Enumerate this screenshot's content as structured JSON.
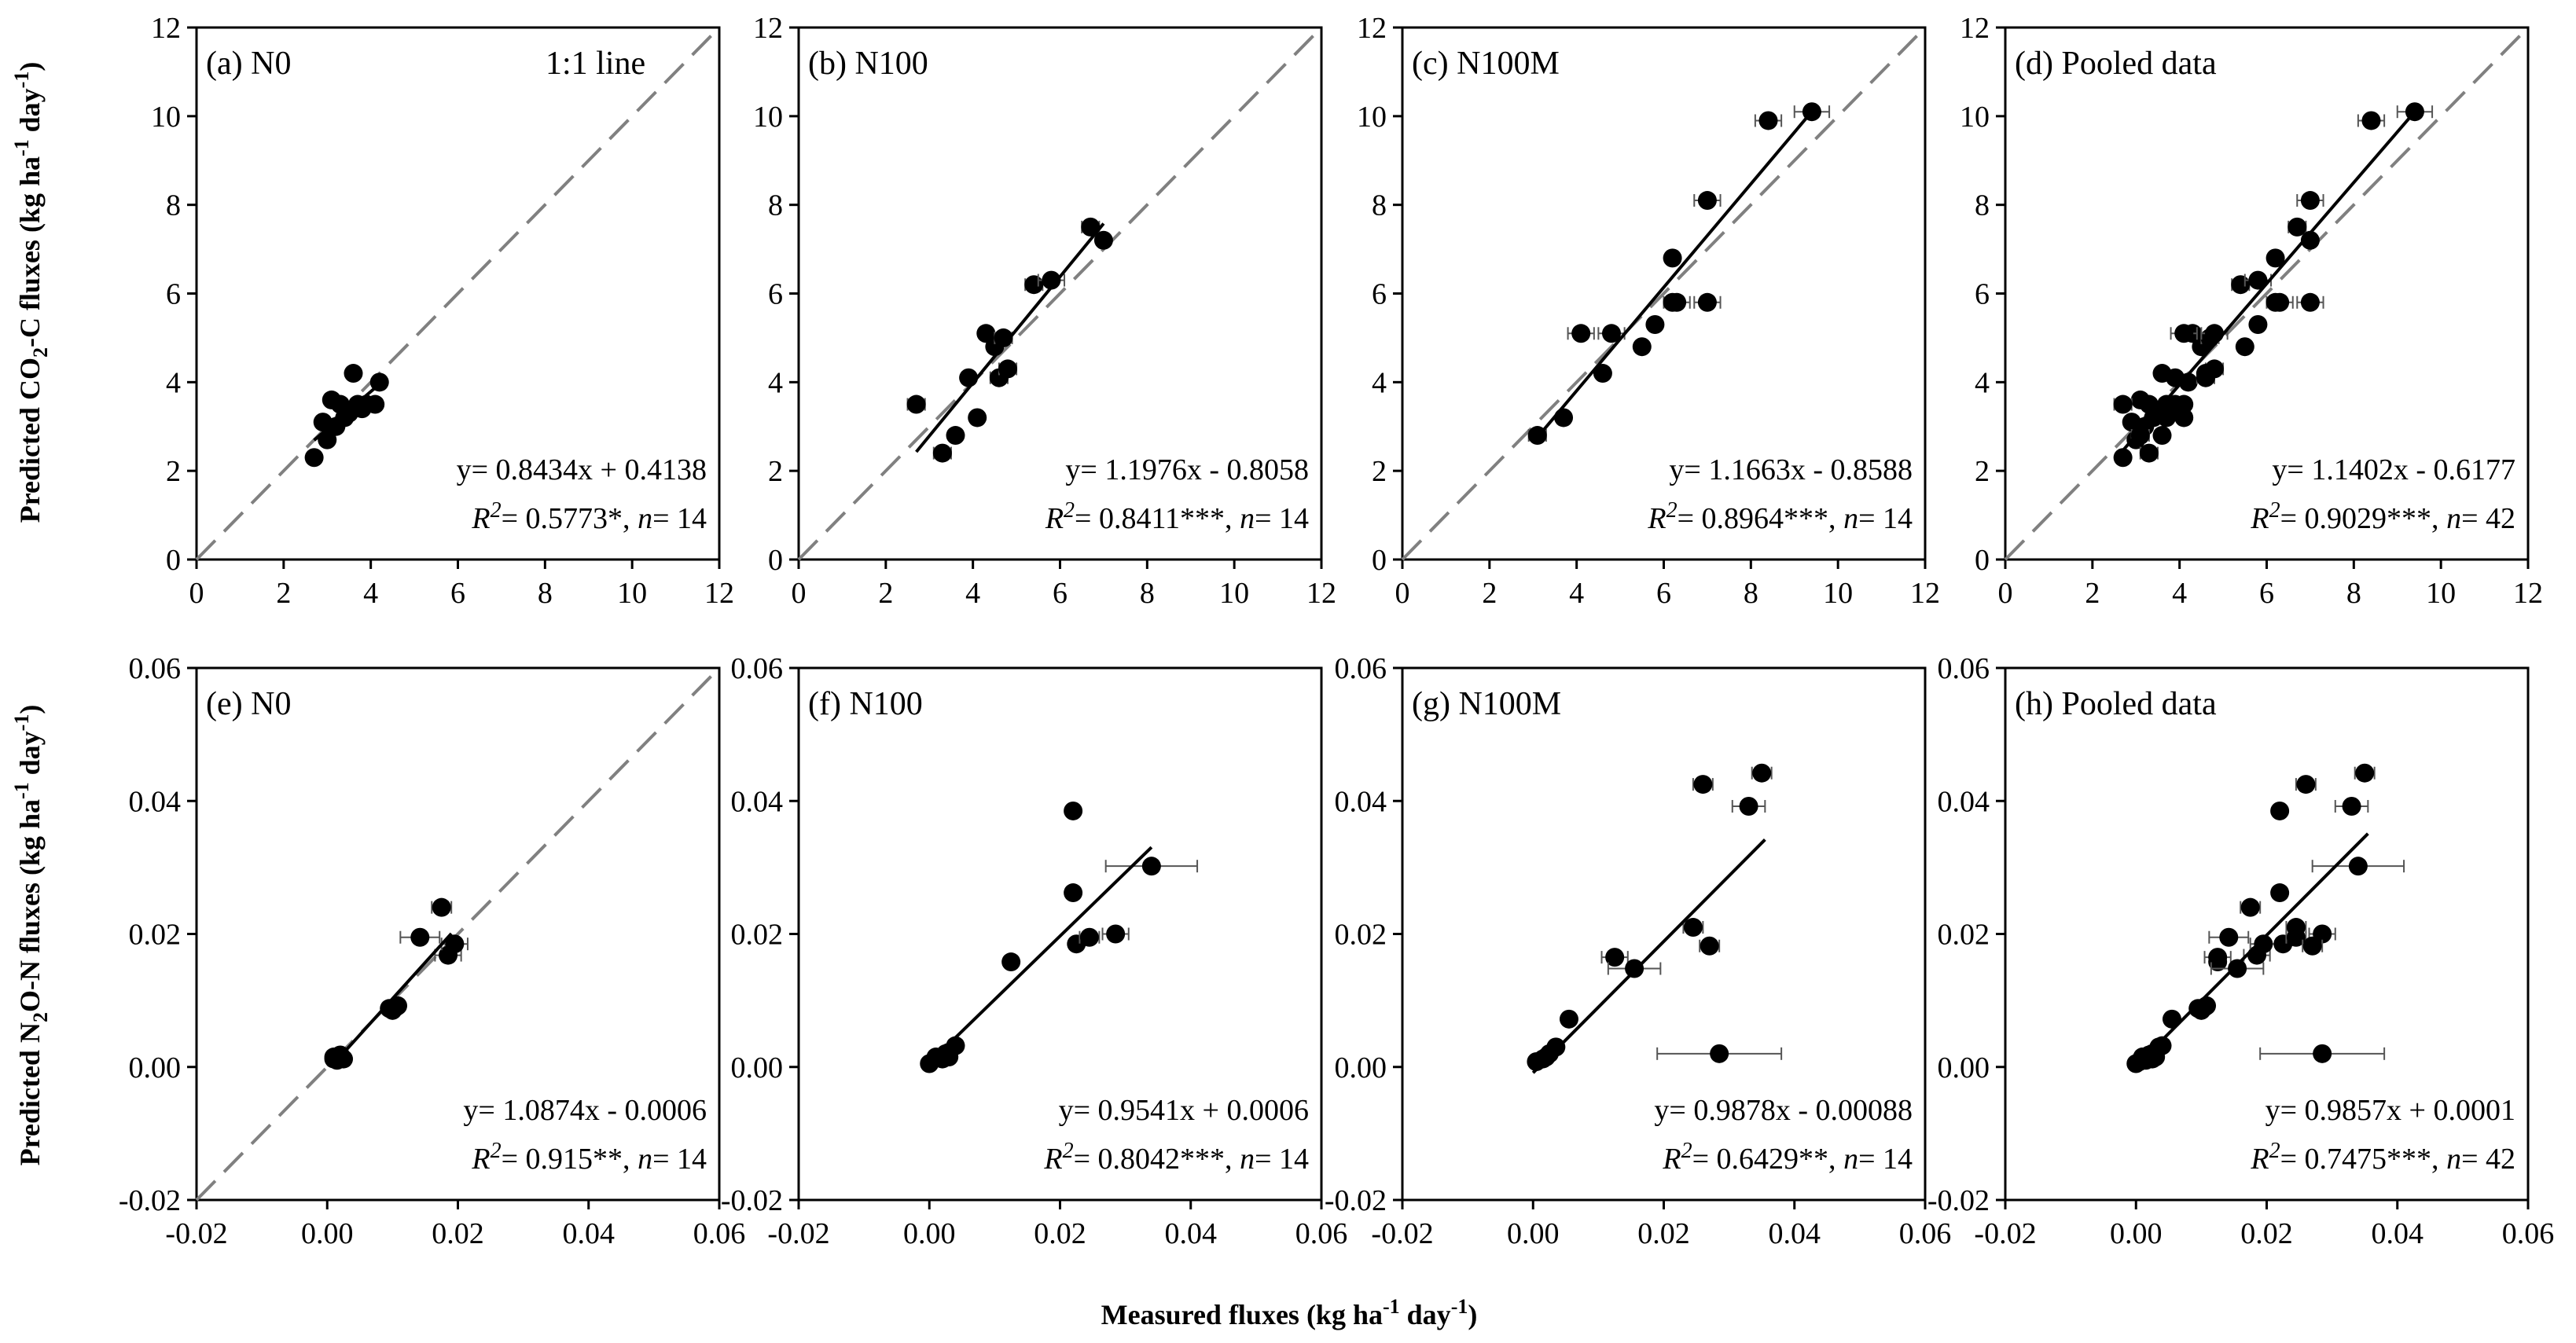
{
  "figure": {
    "y_label_top_parts": [
      "Predicted CO",
      "2",
      "-C fluxes (kg ha",
      "-1",
      " day",
      "-1",
      ")"
    ],
    "y_label_bottom_parts": [
      "Predicted N",
      "2",
      "O-N fluxes (kg ha",
      "-1",
      " day",
      "-1",
      ")"
    ],
    "x_label_parts": [
      "Measured fluxes (kg ha",
      "-1",
      " day",
      "-1",
      ")"
    ],
    "one_to_one_label": "1:1 line"
  },
  "chart_data": [
    {
      "type": "scatter",
      "label": "(a) N0",
      "show_1to1": true,
      "xlim": [
        0,
        12
      ],
      "ylim": [
        0,
        12
      ],
      "xticks": [
        "0",
        "2",
        "4",
        "6",
        "8",
        "10",
        "12"
      ],
      "yticks": [
        "0",
        "2",
        "4",
        "6",
        "8",
        "10",
        "12"
      ],
      "fit": {
        "slope": 0.8434,
        "intercept": 0.4138,
        "x_range": [
          2.7,
          4.2
        ]
      },
      "eq": "y= 0.8434x + 0.4138",
      "r2": {
        "R": "R",
        "sup": "2",
        "text": "= 0.5773*, ",
        "n": "n",
        "ntext": "= 14"
      },
      "points": [
        [
          2.7,
          2.3,
          0
        ],
        [
          3.0,
          2.7,
          0
        ],
        [
          3.1,
          3.6,
          0
        ],
        [
          2.9,
          3.1,
          0
        ],
        [
          3.3,
          3.5,
          0
        ],
        [
          3.5,
          3.3,
          0
        ],
        [
          3.6,
          4.2,
          0
        ],
        [
          3.7,
          3.5,
          0
        ],
        [
          3.9,
          3.5,
          0
        ],
        [
          4.1,
          3.5,
          0
        ],
        [
          4.2,
          4.0,
          0
        ],
        [
          3.4,
          3.2,
          0
        ],
        [
          3.8,
          3.4,
          0
        ],
        [
          3.2,
          3.0,
          0
        ]
      ]
    },
    {
      "type": "scatter",
      "label": "(b) N100",
      "show_1to1": true,
      "xlim": [
        0,
        12
      ],
      "ylim": [
        0,
        12
      ],
      "xticks": [
        "0",
        "2",
        "4",
        "6",
        "8",
        "10",
        "12"
      ],
      "yticks": [
        "0",
        "2",
        "4",
        "6",
        "8",
        "10",
        "12"
      ],
      "fit": {
        "slope": 1.1976,
        "intercept": -0.8058,
        "x_range": [
          2.7,
          7.0
        ]
      },
      "eq": "y= 1.1976x - 0.8058",
      "r2": {
        "R": "R",
        "sup": "2",
        "text": "= 0.8411***, ",
        "n": "n",
        "ntext": "= 14"
      },
      "points": [
        [
          2.7,
          3.5,
          0.2
        ],
        [
          3.3,
          2.4,
          0.2
        ],
        [
          3.6,
          2.8,
          0
        ],
        [
          3.9,
          4.1,
          0
        ],
        [
          4.1,
          3.2,
          0
        ],
        [
          4.3,
          5.1,
          0
        ],
        [
          4.5,
          4.8,
          0
        ],
        [
          4.7,
          5.0,
          0.2
        ],
        [
          4.6,
          4.1,
          0.2
        ],
        [
          4.8,
          4.3,
          0.2
        ],
        [
          5.4,
          6.2,
          0.2
        ],
        [
          5.8,
          6.3,
          0.3
        ],
        [
          6.7,
          7.5,
          0.2
        ],
        [
          7.0,
          7.2,
          0
        ]
      ]
    },
    {
      "type": "scatter",
      "label": "(c) N100M",
      "show_1to1": true,
      "xlim": [
        0,
        12
      ],
      "ylim": [
        0,
        12
      ],
      "xticks": [
        "0",
        "2",
        "4",
        "6",
        "8",
        "10",
        "12"
      ],
      "yticks": [
        "0",
        "2",
        "4",
        "6",
        "8",
        "10",
        "12"
      ],
      "fit": {
        "slope": 1.1663,
        "intercept": -0.8588,
        "x_range": [
          3.1,
          9.4
        ]
      },
      "eq": "y= 1.1663x - 0.8588",
      "r2": {
        "R": "R",
        "sup": "2",
        "text": "= 0.8964***, ",
        "n": "n",
        "ntext": "= 14"
      },
      "points": [
        [
          3.1,
          2.8,
          0.2
        ],
        [
          3.7,
          3.2,
          0
        ],
        [
          4.1,
          5.1,
          0.3
        ],
        [
          4.6,
          4.2,
          0
        ],
        [
          4.8,
          5.1,
          0.3
        ],
        [
          5.5,
          4.8,
          0
        ],
        [
          5.8,
          5.3,
          0
        ],
        [
          6.2,
          6.8,
          0
        ],
        [
          6.3,
          5.8,
          0.3
        ],
        [
          7.0,
          5.8,
          0.3
        ],
        [
          7.0,
          8.1,
          0.3
        ],
        [
          8.4,
          9.9,
          0.3
        ],
        [
          9.4,
          10.1,
          0.4
        ],
        [
          6.2,
          5.8,
          0
        ]
      ]
    },
    {
      "type": "scatter",
      "label": "(d) Pooled data",
      "show_1to1": true,
      "xlim": [
        0,
        12
      ],
      "ylim": [
        0,
        12
      ],
      "xticks": [
        "0",
        "2",
        "4",
        "6",
        "8",
        "10",
        "12"
      ],
      "yticks": [
        "0",
        "2",
        "4",
        "6",
        "8",
        "10",
        "12"
      ],
      "fit": {
        "slope": 1.1402,
        "intercept": -0.6177,
        "x_range": [
          2.7,
          9.4
        ]
      },
      "eq": "y= 1.1402x - 0.6177",
      "r2": {
        "R": "R",
        "sup": "2",
        "text": "= 0.9029***, ",
        "n": "n",
        "ntext": "= 42"
      },
      "points": [
        [
          2.7,
          2.3,
          0
        ],
        [
          3.0,
          2.7,
          0
        ],
        [
          3.1,
          3.6,
          0
        ],
        [
          2.9,
          3.1,
          0
        ],
        [
          3.3,
          3.5,
          0
        ],
        [
          3.5,
          3.3,
          0
        ],
        [
          3.6,
          4.2,
          0
        ],
        [
          3.7,
          3.5,
          0
        ],
        [
          3.9,
          3.5,
          0
        ],
        [
          4.1,
          3.5,
          0
        ],
        [
          4.2,
          4.0,
          0
        ],
        [
          3.4,
          3.2,
          0
        ],
        [
          3.8,
          3.4,
          0
        ],
        [
          3.2,
          3.0,
          0
        ],
        [
          2.7,
          3.5,
          0.2
        ],
        [
          3.3,
          2.4,
          0.2
        ],
        [
          3.6,
          2.8,
          0
        ],
        [
          3.9,
          4.1,
          0
        ],
        [
          4.1,
          3.2,
          0
        ],
        [
          4.3,
          5.1,
          0
        ],
        [
          4.5,
          4.8,
          0
        ],
        [
          4.7,
          5.0,
          0.2
        ],
        [
          4.6,
          4.1,
          0.2
        ],
        [
          4.8,
          4.3,
          0.2
        ],
        [
          5.4,
          6.2,
          0.2
        ],
        [
          5.8,
          6.3,
          0.3
        ],
        [
          6.7,
          7.5,
          0.2
        ],
        [
          7.0,
          7.2,
          0
        ],
        [
          3.1,
          2.8,
          0.2
        ],
        [
          3.7,
          3.2,
          0
        ],
        [
          4.1,
          5.1,
          0.3
        ],
        [
          4.6,
          4.2,
          0
        ],
        [
          4.8,
          5.1,
          0.3
        ],
        [
          5.5,
          4.8,
          0
        ],
        [
          5.8,
          5.3,
          0
        ],
        [
          6.2,
          6.8,
          0
        ],
        [
          6.3,
          5.8,
          0.3
        ],
        [
          7.0,
          5.8,
          0.3
        ],
        [
          7.0,
          8.1,
          0.3
        ],
        [
          8.4,
          9.9,
          0.3
        ],
        [
          9.4,
          10.1,
          0.4
        ],
        [
          6.2,
          5.8,
          0
        ]
      ]
    },
    {
      "type": "scatter",
      "label": "(e) N0",
      "show_1to1": true,
      "xlim": [
        -0.02,
        0.06
      ],
      "ylim": [
        -0.02,
        0.06
      ],
      "xticks": [
        "-0.02",
        "0.00",
        "0.02",
        "0.04",
        "0.06"
      ],
      "yticks": [
        "-0.02",
        "0.00",
        "0.02",
        "0.04",
        "0.06"
      ],
      "fit": {
        "slope": 1.0874,
        "intercept": -0.0006,
        "x_range": [
          0.001,
          0.019
        ]
      },
      "eq": "y= 1.0874x - 0.0006",
      "r2": {
        "R": "R",
        "sup": "2",
        "text": "= 0.915**, ",
        "n": "n",
        "ntext": "= 14"
      },
      "points": [
        [
          0.001,
          0.0015,
          0
        ],
        [
          0.0015,
          0.001,
          0
        ],
        [
          0.002,
          0.0018,
          0
        ],
        [
          0.0025,
          0.0012,
          0
        ],
        [
          0.001,
          0.0012,
          0
        ],
        [
          0.002,
          0.0014,
          0
        ],
        [
          0.01,
          0.0085,
          0
        ],
        [
          0.0105,
          0.009,
          0
        ],
        [
          0.0095,
          0.0088,
          0
        ],
        [
          0.0142,
          0.0195,
          0.003
        ],
        [
          0.0175,
          0.024,
          0.0015
        ],
        [
          0.0185,
          0.0168,
          0.002
        ],
        [
          0.0195,
          0.0185,
          0.002
        ],
        [
          0.0108,
          0.0092,
          0
        ]
      ]
    },
    {
      "type": "scatter",
      "label": "(f) N100",
      "show_1to1": false,
      "xlim": [
        -0.02,
        0.06
      ],
      "ylim": [
        -0.02,
        0.06
      ],
      "xticks": [
        "-0.02",
        "0.00",
        "0.02",
        "0.04",
        "0.06"
      ],
      "yticks": [
        "-0.02",
        "0.00",
        "0.02",
        "0.04",
        "0.06"
      ],
      "fit": {
        "slope": 0.9541,
        "intercept": 0.0006,
        "x_range": [
          0.0,
          0.034
        ]
      },
      "eq": "y= 0.9541x + 0.0006",
      "r2": {
        "R": "R",
        "sup": "2",
        "text": "= 0.8042***, ",
        "n": "n",
        "ntext": "= 14"
      },
      "points": [
        [
          0.0,
          0.0005,
          0
        ],
        [
          0.001,
          0.0015,
          0
        ],
        [
          0.002,
          0.0012,
          0
        ],
        [
          0.0025,
          0.002,
          0
        ],
        [
          0.003,
          0.0022,
          0
        ],
        [
          0.004,
          0.0032,
          0
        ],
        [
          0.0125,
          0.0158,
          0
        ],
        [
          0.022,
          0.0385,
          0
        ],
        [
          0.022,
          0.0262,
          0
        ],
        [
          0.0225,
          0.0185,
          0
        ],
        [
          0.0245,
          0.0195,
          0.0015
        ],
        [
          0.0285,
          0.02,
          0.002
        ],
        [
          0.034,
          0.0302,
          0.007
        ],
        [
          0.003,
          0.0015,
          0
        ]
      ]
    },
    {
      "type": "scatter",
      "label": "(g) N100M",
      "show_1to1": false,
      "xlim": [
        -0.02,
        0.06
      ],
      "ylim": [
        -0.02,
        0.06
      ],
      "xticks": [
        "-0.02",
        "0.00",
        "0.02",
        "0.04",
        "0.06"
      ],
      "yticks": [
        "-0.02",
        "0.00",
        "0.02",
        "0.04",
        "0.06"
      ],
      "fit": {
        "slope": 0.9878,
        "intercept": -0.00088,
        "x_range": [
          0.0,
          0.0355
        ]
      },
      "eq": "y= 0.9878x - 0.00088",
      "r2": {
        "R": "R",
        "sup": "2",
        "text": "= 0.6429**, ",
        "n": "n",
        "ntext": "= 14"
      },
      "points": [
        [
          0.0005,
          0.0008,
          0
        ],
        [
          0.0015,
          0.0012,
          0
        ],
        [
          0.0025,
          0.002,
          0
        ],
        [
          0.0035,
          0.003,
          0
        ],
        [
          0.0055,
          0.0072,
          0
        ],
        [
          0.0125,
          0.0165,
          0.002
        ],
        [
          0.0155,
          0.0148,
          0.004
        ],
        [
          0.0245,
          0.021,
          0.0015
        ],
        [
          0.026,
          0.0425,
          0.0015
        ],
        [
          0.027,
          0.0182,
          0.0015
        ],
        [
          0.0285,
          0.002,
          0.0095
        ],
        [
          0.033,
          0.0392,
          0.0025
        ],
        [
          0.035,
          0.0442,
          0.0015
        ],
        [
          0.002,
          0.0015,
          0
        ]
      ]
    },
    {
      "type": "scatter",
      "label": "(h) Pooled data",
      "show_1to1": false,
      "xlim": [
        -0.02,
        0.06
      ],
      "ylim": [
        -0.02,
        0.06
      ],
      "xticks": [
        "-0.02",
        "0.00",
        "0.02",
        "0.04",
        "0.06"
      ],
      "yticks": [
        "-0.02",
        "0.00",
        "0.02",
        "0.04",
        "0.06"
      ],
      "fit": {
        "slope": 0.9857,
        "intercept": 0.0001,
        "x_range": [
          0.0,
          0.0355
        ]
      },
      "eq": "y= 0.9857x + 0.0001",
      "r2": {
        "R": "R",
        "sup": "2",
        "text": "= 0.7475***, ",
        "n": "n",
        "ntext": "= 42"
      },
      "points": [
        [
          0.001,
          0.0015,
          0
        ],
        [
          0.0015,
          0.001,
          0
        ],
        [
          0.002,
          0.0018,
          0
        ],
        [
          0.0025,
          0.0012,
          0
        ],
        [
          0.001,
          0.0012,
          0
        ],
        [
          0.002,
          0.0014,
          0
        ],
        [
          0.01,
          0.0085,
          0
        ],
        [
          0.0105,
          0.009,
          0
        ],
        [
          0.0095,
          0.0088,
          0
        ],
        [
          0.0142,
          0.0195,
          0.003
        ],
        [
          0.0175,
          0.024,
          0.0015
        ],
        [
          0.0185,
          0.0168,
          0.002
        ],
        [
          0.0195,
          0.0185,
          0.002
        ],
        [
          0.0108,
          0.0092,
          0
        ],
        [
          0.0,
          0.0005,
          0
        ],
        [
          0.001,
          0.0015,
          0
        ],
        [
          0.002,
          0.0012,
          0
        ],
        [
          0.0025,
          0.002,
          0
        ],
        [
          0.003,
          0.0022,
          0
        ],
        [
          0.004,
          0.0032,
          0
        ],
        [
          0.0125,
          0.0158,
          0
        ],
        [
          0.022,
          0.0385,
          0
        ],
        [
          0.022,
          0.0262,
          0
        ],
        [
          0.0225,
          0.0185,
          0
        ],
        [
          0.0245,
          0.0195,
          0.0015
        ],
        [
          0.0285,
          0.02,
          0.002
        ],
        [
          0.034,
          0.0302,
          0.007
        ],
        [
          0.003,
          0.0015,
          0
        ],
        [
          0.0005,
          0.0008,
          0
        ],
        [
          0.0015,
          0.0012,
          0
        ],
        [
          0.0025,
          0.002,
          0
        ],
        [
          0.0035,
          0.003,
          0
        ],
        [
          0.0055,
          0.0072,
          0
        ],
        [
          0.0125,
          0.0165,
          0.002
        ],
        [
          0.0155,
          0.0148,
          0.004
        ],
        [
          0.0245,
          0.021,
          0.0015
        ],
        [
          0.026,
          0.0425,
          0.0015
        ],
        [
          0.027,
          0.0182,
          0.0015
        ],
        [
          0.0285,
          0.002,
          0.0095
        ],
        [
          0.033,
          0.0392,
          0.0025
        ],
        [
          0.035,
          0.0442,
          0.0015
        ],
        [
          0.002,
          0.0015,
          0
        ]
      ]
    }
  ]
}
